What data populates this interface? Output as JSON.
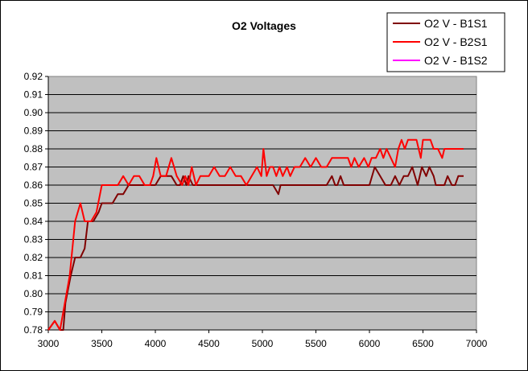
{
  "chart_data": {
    "type": "line",
    "title": "O2 Voltages",
    "xlabel": "",
    "ylabel": "",
    "xlim": [
      3000,
      7000
    ],
    "ylim": [
      0.78,
      0.92
    ],
    "xticks": [
      "3000",
      "3500",
      "4000",
      "4500",
      "5000",
      "5500",
      "6000",
      "6500",
      "7000"
    ],
    "yticks": [
      "0.92",
      "0.91",
      "0.90",
      "0.89",
      "0.88",
      "0.87",
      "0.86",
      "0.85",
      "0.84",
      "0.83",
      "0.82",
      "0.81",
      "0.80",
      "0.79",
      "0.78"
    ],
    "grid": "horizontal",
    "legend_position": "top-right",
    "plot_background": "#C0C0C0",
    "series": [
      {
        "name": "O2 V - B1S1",
        "color": "#800000",
        "x": [
          3000,
          3060,
          3110,
          3140,
          3160,
          3210,
          3250,
          3300,
          3340,
          3370,
          3420,
          3470,
          3500,
          3600,
          3650,
          3700,
          3750,
          3800,
          3850,
          3900,
          3950,
          4000,
          4050,
          4100,
          4150,
          4200,
          4230,
          4260,
          4290,
          4310,
          4350,
          4400,
          4450,
          4500,
          4600,
          4700,
          4800,
          4900,
          5000,
          5100,
          5150,
          5170,
          5200,
          5300,
          5400,
          5500,
          5600,
          5650,
          5680,
          5700,
          5730,
          5760,
          5800,
          5850,
          5900,
          6000,
          6050,
          6100,
          6150,
          6200,
          6240,
          6280,
          6320,
          6360,
          6400,
          6450,
          6490,
          6530,
          6560,
          6600,
          6620,
          6650,
          6700,
          6730,
          6770,
          6800,
          6830,
          6860,
          6880
        ],
        "values": [
          0.78,
          0.785,
          0.78,
          0.78,
          0.795,
          0.81,
          0.82,
          0.82,
          0.825,
          0.84,
          0.84,
          0.845,
          0.85,
          0.85,
          0.855,
          0.855,
          0.86,
          0.86,
          0.86,
          0.86,
          0.86,
          0.86,
          0.865,
          0.865,
          0.865,
          0.86,
          0.86,
          0.865,
          0.86,
          0.865,
          0.86,
          0.86,
          0.86,
          0.86,
          0.86,
          0.86,
          0.86,
          0.86,
          0.86,
          0.86,
          0.855,
          0.86,
          0.86,
          0.86,
          0.86,
          0.86,
          0.86,
          0.865,
          0.86,
          0.86,
          0.865,
          0.86,
          0.86,
          0.86,
          0.86,
          0.86,
          0.87,
          0.865,
          0.86,
          0.86,
          0.865,
          0.86,
          0.865,
          0.865,
          0.87,
          0.86,
          0.87,
          0.865,
          0.87,
          0.865,
          0.86,
          0.86,
          0.86,
          0.865,
          0.86,
          0.86,
          0.865,
          0.865,
          0.865
        ]
      },
      {
        "name": "O2 V - B2S1",
        "color": "#FF0000",
        "x": [
          3000,
          3060,
          3110,
          3140,
          3200,
          3250,
          3300,
          3340,
          3400,
          3450,
          3500,
          3550,
          3600,
          3650,
          3700,
          3750,
          3800,
          3850,
          3900,
          3950,
          3980,
          4010,
          4050,
          4100,
          4150,
          4200,
          4250,
          4280,
          4310,
          4340,
          4380,
          4420,
          4500,
          4550,
          4600,
          4650,
          4700,
          4750,
          4800,
          4850,
          4900,
          4950,
          4990,
          5010,
          5040,
          5070,
          5100,
          5130,
          5160,
          5190,
          5230,
          5260,
          5300,
          5350,
          5400,
          5450,
          5500,
          5550,
          5600,
          5650,
          5700,
          5750,
          5800,
          5830,
          5860,
          5900,
          5950,
          5990,
          6020,
          6060,
          6100,
          6130,
          6160,
          6200,
          6240,
          6270,
          6300,
          6330,
          6360,
          6400,
          6440,
          6480,
          6500,
          6530,
          6570,
          6600,
          6640,
          6680,
          6700,
          6750,
          6800,
          6850,
          6880
        ],
        "values": [
          0.78,
          0.785,
          0.78,
          0.79,
          0.81,
          0.84,
          0.85,
          0.84,
          0.84,
          0.845,
          0.86,
          0.86,
          0.86,
          0.86,
          0.865,
          0.86,
          0.865,
          0.865,
          0.86,
          0.86,
          0.865,
          0.875,
          0.865,
          0.865,
          0.875,
          0.865,
          0.86,
          0.865,
          0.86,
          0.87,
          0.86,
          0.865,
          0.865,
          0.87,
          0.865,
          0.865,
          0.87,
          0.865,
          0.865,
          0.86,
          0.865,
          0.87,
          0.865,
          0.88,
          0.865,
          0.87,
          0.87,
          0.865,
          0.87,
          0.865,
          0.87,
          0.865,
          0.87,
          0.87,
          0.875,
          0.87,
          0.875,
          0.87,
          0.87,
          0.875,
          0.875,
          0.875,
          0.875,
          0.87,
          0.875,
          0.87,
          0.875,
          0.87,
          0.875,
          0.875,
          0.88,
          0.875,
          0.88,
          0.875,
          0.87,
          0.88,
          0.885,
          0.88,
          0.885,
          0.885,
          0.885,
          0.875,
          0.885,
          0.885,
          0.885,
          0.88,
          0.88,
          0.875,
          0.88,
          0.88,
          0.88,
          0.88,
          0.88
        ]
      },
      {
        "name": "O2 V - B1S2",
        "color": "#FF00FF",
        "x": [],
        "values": []
      }
    ]
  }
}
